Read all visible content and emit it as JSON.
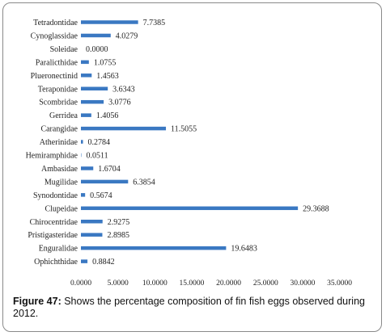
{
  "chart_data": {
    "type": "bar",
    "orientation": "horizontal",
    "categories": [
      "Tetradontidae",
      "Cynoglassidae",
      "Soleidae",
      "Paralicthidae",
      "Plueronectinid",
      "Teraponidae",
      "Scombridae",
      "Gerridea",
      "Carangidae",
      "Atherinidae",
      "Hemiramphidae",
      "Ambasidae",
      "Mugilidae",
      "Synodontidae",
      "Clupeidae",
      "Chirocentridae",
      "Pristigasteridae",
      "Enguralidae",
      "Ophichthidae"
    ],
    "values": [
      7.7385,
      4.0279,
      0.0,
      1.0755,
      1.4563,
      3.6343,
      3.0776,
      1.4056,
      11.5055,
      0.2784,
      0.0511,
      1.6704,
      6.3854,
      0.5674,
      29.3688,
      2.9275,
      2.8985,
      19.6483,
      0.8842
    ],
    "value_labels": [
      "7.7385",
      "4.0279",
      "0.0000",
      "1.0755",
      "1.4563",
      "3.6343",
      "3.0776",
      "1.4056",
      "11.5055",
      "0.2784",
      "0.0511",
      "1.6704",
      "6.3854",
      "0.5674",
      "29.3688",
      "2.9275",
      "2.8985",
      "19.6483",
      "0.8842"
    ],
    "xlim": [
      0,
      35
    ],
    "x_ticks": [
      "0.0000",
      "5.0000",
      "10.0000",
      "15.0000",
      "20.0000",
      "25.0000",
      "30.0000",
      "35.0000"
    ],
    "grid": false,
    "bar_color": "#3a78c2"
  },
  "caption": {
    "label": "Figure 47:",
    "text": " Shows the percentage composition of fin fish eggs observed during 2012."
  }
}
